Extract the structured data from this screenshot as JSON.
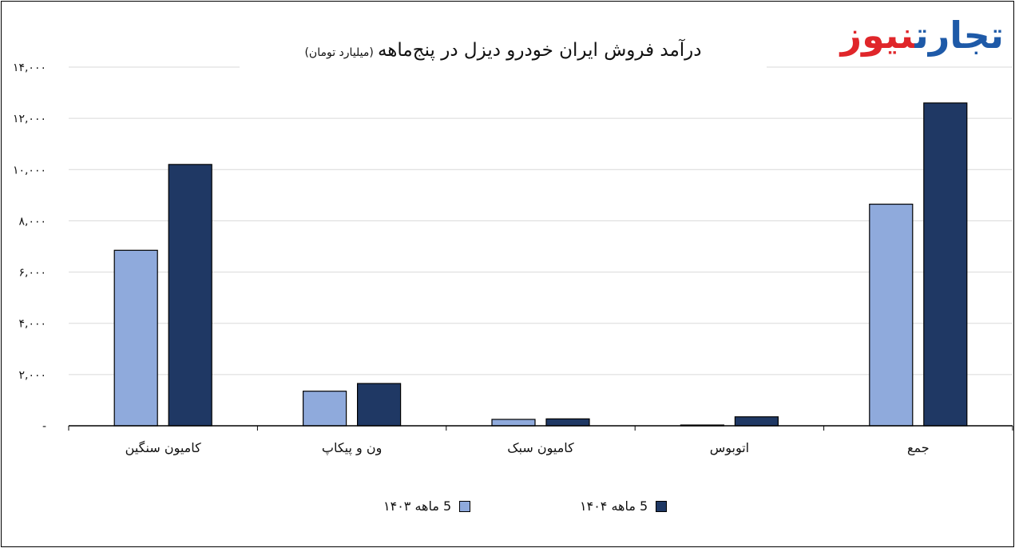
{
  "logo": {
    "part_blue": "تجارت",
    "part_red": "نیوز"
  },
  "chart_data": {
    "type": "bar",
    "title": "درآمد فروش ایران خودرو دیزل در پنج‌ماهه",
    "subtitle": "(میلیارد تومان)",
    "categories": [
      "کامیون سنگین",
      "ون و پیکاپ",
      "کامیون سبک",
      "اتوبوس",
      "جمع"
    ],
    "series": [
      {
        "name": "5 ماهه ۱۴۰۳",
        "color": "#8faadc",
        "values": [
          6850,
          1350,
          250,
          30,
          8650
        ]
      },
      {
        "name": "5 ماهه ۱۴۰۴",
        "color": "#1f3864",
        "values": [
          10200,
          1650,
          270,
          350,
          12600
        ]
      }
    ],
    "ylim": [
      0,
      14000
    ],
    "yticks": [
      {
        "value": 0,
        "label": "-"
      },
      {
        "value": 2000,
        "label": "۲,۰۰۰"
      },
      {
        "value": 4000,
        "label": "۴,۰۰۰"
      },
      {
        "value": 6000,
        "label": "۶,۰۰۰"
      },
      {
        "value": 8000,
        "label": "۸,۰۰۰"
      },
      {
        "value": 10000,
        "label": "۱۰,۰۰۰"
      },
      {
        "value": 12000,
        "label": "۱۲,۰۰۰"
      },
      {
        "value": 14000,
        "label": "۱۴,۰۰۰"
      }
    ],
    "grid": true,
    "legend_position": "bottom"
  }
}
